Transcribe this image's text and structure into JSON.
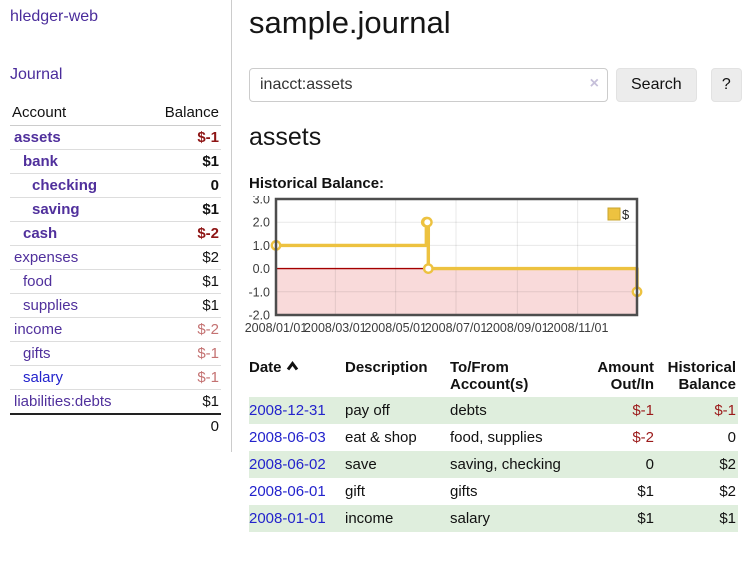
{
  "app": {
    "brand": "hledger-web",
    "nav_journal": "Journal"
  },
  "sidebar": {
    "header": {
      "account": "Account",
      "balance": "Balance"
    },
    "accounts": [
      {
        "name": "assets",
        "level": 0,
        "bold": true,
        "link_style": "purple",
        "balance": "$-1",
        "balance_style": "neg-strong"
      },
      {
        "name": "bank",
        "level": 1,
        "bold": true,
        "link_style": "purple",
        "balance": "$1",
        "balance_style": "pos"
      },
      {
        "name": "checking",
        "level": 2,
        "bold": true,
        "link_style": "purple",
        "balance": "0",
        "balance_style": "pos"
      },
      {
        "name": "saving",
        "level": 2,
        "bold": true,
        "link_style": "purple",
        "balance": "$1",
        "balance_style": "pos"
      },
      {
        "name": "cash",
        "level": 1,
        "bold": true,
        "link_style": "purple",
        "balance": "$-2",
        "balance_style": "neg-strong"
      },
      {
        "name": "expenses",
        "level": 0,
        "bold": false,
        "link_style": "purple",
        "balance": "$2",
        "balance_style": "pos"
      },
      {
        "name": "food",
        "level": 1,
        "bold": false,
        "link_style": "purple",
        "balance": "$1",
        "balance_style": "pos"
      },
      {
        "name": "supplies",
        "level": 1,
        "bold": false,
        "link_style": "purple",
        "balance": "$1",
        "balance_style": "pos"
      },
      {
        "name": "income",
        "level": 0,
        "bold": false,
        "link_style": "purple",
        "balance": "$-2",
        "balance_style": "neg-soft"
      },
      {
        "name": "gifts",
        "level": 1,
        "bold": false,
        "link_style": "purple",
        "balance": "$-1",
        "balance_style": "neg-soft"
      },
      {
        "name": "salary",
        "level": 1,
        "bold": false,
        "link_style": "blue",
        "balance": "$-1",
        "balance_style": "neg-soft"
      },
      {
        "name": "liabilities:debts",
        "level": 0,
        "bold": false,
        "link_style": "purple",
        "balance": "$1",
        "balance_style": "pos"
      }
    ],
    "total": "0"
  },
  "header": {
    "title": "sample.journal"
  },
  "search": {
    "value": "inacct:assets",
    "clear_icon": "×",
    "button_label": "Search",
    "help_label": "?"
  },
  "account_page": {
    "heading": "assets",
    "chart_label": "Historical Balance:"
  },
  "chart_data": {
    "type": "line",
    "title": "Historical Balance",
    "step": true,
    "series": [
      {
        "name": "$",
        "color": "#edc240",
        "points": [
          [
            "2008-01-01",
            1
          ],
          [
            "2008-06-01",
            2
          ],
          [
            "2008-06-02",
            2
          ],
          [
            "2008-06-03",
            0
          ],
          [
            "2008-12-31",
            -1
          ]
        ]
      }
    ],
    "x_range": [
      "2008-01-01",
      "2008-12-31"
    ],
    "x_ticks": [
      {
        "date": "2008-01-01",
        "label": "2008/01/01"
      },
      {
        "date": "2008-03-01",
        "label": "2008/03/01"
      },
      {
        "date": "2008-05-01",
        "label": "2008/05/01"
      },
      {
        "date": "2008-07-01",
        "label": "2008/07/01"
      },
      {
        "date": "2008-09-01",
        "label": "2008/09/01"
      },
      {
        "date": "2008-11-01",
        "label": "2008/11/01"
      }
    ],
    "y_ticks": [
      "3.0",
      "2.0",
      "1.0",
      "0.0",
      "-1.0",
      "-2.0"
    ],
    "ylim": [
      -2,
      3
    ],
    "grid": true,
    "negative_region_color": "#f9dada",
    "zero_line_color": "#a40000",
    "legend": {
      "label": "$",
      "position": "top-right",
      "marker_color": "#edc240"
    }
  },
  "register": {
    "columns": {
      "date": "Date",
      "description": "Description",
      "accounts_line1": "To/From",
      "accounts_line2": "Account(s)",
      "amount_line1": "Amount",
      "amount_line2": "Out/In",
      "balance_line1": "Historical",
      "balance_line2": "Balance"
    },
    "sort_icon": "chevron-up",
    "rows": [
      {
        "date": "2008-12-31",
        "description": "pay off",
        "accounts": "debts",
        "amount": "$-1",
        "amount_neg": true,
        "balance": "$-1",
        "balance_neg": true,
        "shaded": true
      },
      {
        "date": "2008-06-03",
        "description": "eat & shop",
        "accounts": "food, supplies",
        "amount": "$-2",
        "amount_neg": true,
        "balance": "0",
        "balance_neg": false,
        "shaded": false
      },
      {
        "date": "2008-06-02",
        "description": "save",
        "accounts": "saving, checking",
        "amount": "0",
        "amount_neg": false,
        "balance": "$2",
        "balance_neg": false,
        "shaded": true
      },
      {
        "date": "2008-06-01",
        "description": "gift",
        "accounts": "gifts",
        "amount": "$1",
        "amount_neg": false,
        "balance": "$2",
        "balance_neg": false,
        "shaded": false
      },
      {
        "date": "2008-01-01",
        "description": "income",
        "accounts": "salary",
        "amount": "$1",
        "amount_neg": false,
        "balance": "$1",
        "balance_neg": false,
        "shaded": true
      }
    ]
  }
}
